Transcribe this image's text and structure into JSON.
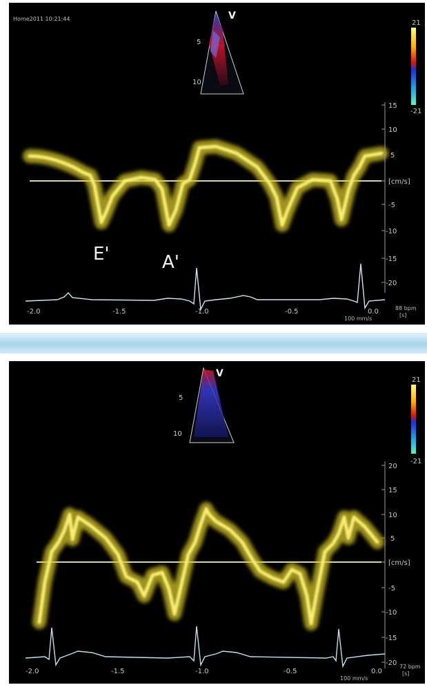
{
  "top_panel": {
    "timestamp": "Home2011 10:21:44",
    "mode_letter": "V",
    "depth_marks": [
      "5",
      "10"
    ],
    "color_scale": [
      "21",
      "-21"
    ],
    "velocity_ticks": [
      "15",
      "10",
      "5",
      "[cm/s]",
      "-5",
      "-10",
      "-15",
      "-20"
    ],
    "time_ticks": [
      "-2.0",
      "-1.5",
      "-1.0",
      "-0.5",
      "0.0"
    ],
    "wave_labels": [
      "E'",
      "A'"
    ],
    "time_unit": "[s]",
    "hr_label": "88 bpm",
    "scale_note": "100 mm/s"
  },
  "bottom_panel": {
    "mode_letter": "V",
    "depth_marks": [
      "5",
      "10"
    ],
    "color_scale": [
      "21",
      "-21"
    ],
    "velocity_ticks": [
      "20",
      "15",
      "10",
      "5",
      "[cm/s]",
      "-5",
      "-10",
      "-15",
      "-20"
    ],
    "time_ticks": [
      "-2.0",
      "-1.5",
      "-1.0",
      "-0.5",
      "0.0"
    ],
    "time_unit": "[s]",
    "hr_label": "72 bpm",
    "scale_note": "100 mm/s"
  }
}
